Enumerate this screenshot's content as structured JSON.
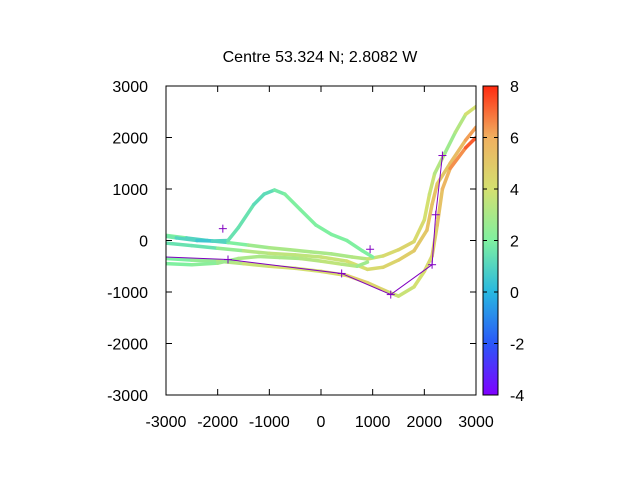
{
  "chart_data": {
    "type": "line",
    "title": "Centre 53.324 N; 2.8082  W",
    "xlabel": "",
    "ylabel": "",
    "xlim": [
      -3000,
      3000
    ],
    "ylim": [
      -3000,
      3000
    ],
    "xticks": [
      -3000,
      -2000,
      -1000,
      0,
      1000,
      2000,
      3000
    ],
    "yticks": [
      -3000,
      -2000,
      -1000,
      0,
      1000,
      2000,
      3000
    ],
    "xtick_labels": [
      "-3000",
      "-2000",
      "-1000",
      "0",
      "1000",
      "2000",
      "3000"
    ],
    "ytick_labels": [
      "-3000",
      "-2000",
      "-1000",
      "0",
      "1000",
      "2000",
      "3000"
    ],
    "colorbar": {
      "range": [
        -4,
        8
      ],
      "ticks": [
        8,
        6,
        4,
        2,
        0,
        -2,
        -4
      ],
      "tick_labels": [
        "8",
        "6",
        "4",
        "2",
        "0",
        "-2",
        "-4"
      ],
      "palette": [
        "#8000ff",
        "#2a57f8",
        "#28b8e0",
        "#7ff0a0",
        "#d4e070",
        "#f0b060",
        "#ff2a10"
      ]
    },
    "grid": false,
    "series": [
      {
        "kind": "colored-track",
        "points": [
          [
            -3000,
            100,
            2.5
          ],
          [
            -2600,
            50,
            1.5
          ],
          [
            -2200,
            0,
            0.5
          ],
          [
            -1800,
            -40,
            1.5
          ],
          [
            -1400,
            -90,
            2.5
          ],
          [
            -1000,
            -140,
            3
          ],
          [
            -600,
            -180,
            3
          ],
          [
            -200,
            -220,
            3
          ],
          [
            200,
            -260,
            3
          ],
          [
            600,
            -320,
            3
          ],
          [
            900,
            -360,
            3.5
          ],
          [
            1200,
            -300,
            4
          ],
          [
            1500,
            -180,
            4.5
          ],
          [
            1800,
            -20,
            4.5
          ],
          [
            2000,
            400,
            4
          ],
          [
            2100,
            900,
            4
          ],
          [
            2200,
            1300,
            3.5
          ],
          [
            2400,
            1700,
            3
          ],
          [
            2600,
            2100,
            2.5
          ],
          [
            2800,
            2450,
            4
          ],
          [
            3000,
            2600,
            4
          ]
        ]
      },
      {
        "kind": "colored-track",
        "points": [
          [
            -3000,
            -50,
            2
          ],
          [
            -2500,
            -100,
            1
          ],
          [
            -2000,
            -150,
            2
          ],
          [
            -1500,
            -200,
            3
          ],
          [
            -1000,
            -250,
            3.5
          ],
          [
            -500,
            -280,
            3.5
          ],
          [
            0,
            -320,
            3.5
          ],
          [
            500,
            -400,
            4
          ],
          [
            900,
            -560,
            4
          ],
          [
            1200,
            -520,
            4.5
          ],
          [
            1500,
            -380,
            4.5
          ],
          [
            1800,
            -200,
            5
          ],
          [
            2050,
            200,
            5
          ],
          [
            2150,
            700,
            5.5
          ],
          [
            2250,
            1100,
            5
          ],
          [
            2500,
            1500,
            5
          ],
          [
            2800,
            1950,
            6
          ],
          [
            3000,
            2200,
            6.5
          ]
        ]
      },
      {
        "kind": "colored-track",
        "points": [
          [
            -3000,
            -350,
            2
          ],
          [
            -2500,
            -380,
            2
          ],
          [
            -2000,
            -400,
            3
          ],
          [
            -1500,
            -450,
            3.5
          ],
          [
            -1000,
            -500,
            4
          ],
          [
            -500,
            -540,
            4
          ],
          [
            0,
            -600,
            4
          ],
          [
            500,
            -680,
            4.5
          ],
          [
            900,
            -820,
            5
          ],
          [
            1300,
            -1000,
            4
          ],
          [
            1500,
            -1080,
            3.5
          ],
          [
            1800,
            -900,
            4
          ],
          [
            2000,
            -600,
            4
          ],
          [
            2150,
            -300,
            4.5
          ],
          [
            2250,
            300,
            5
          ],
          [
            2350,
            1000,
            5.5
          ],
          [
            2500,
            1400,
            6
          ],
          [
            2800,
            1800,
            7
          ],
          [
            3000,
            2000,
            7.5
          ]
        ]
      },
      {
        "kind": "colored-track",
        "points": [
          [
            -3000,
            -450,
            2
          ],
          [
            -2500,
            -470,
            2
          ],
          [
            -2000,
            -440,
            2.5
          ],
          [
            -1600,
            -350,
            3
          ],
          [
            -1200,
            -310,
            3
          ],
          [
            -800,
            -330,
            3
          ],
          [
            -400,
            -350,
            3
          ],
          [
            0,
            -400,
            3.5
          ],
          [
            400,
            -460,
            3.5
          ],
          [
            700,
            -500,
            3
          ],
          [
            900,
            -420,
            2.5
          ]
        ]
      },
      {
        "kind": "colored-track",
        "points": [
          [
            -3000,
            80,
            2
          ],
          [
            -2800,
            50,
            1.5
          ],
          [
            -2400,
            0,
            0.5
          ],
          [
            -2100,
            -10,
            0.5
          ],
          [
            -1800,
            0,
            1.5
          ],
          [
            -1600,
            250,
            1.5
          ],
          [
            -1300,
            700,
            1.5
          ],
          [
            -1100,
            900,
            1
          ],
          [
            -900,
            980,
            1.5
          ],
          [
            -700,
            900,
            2
          ],
          [
            -400,
            600,
            2
          ],
          [
            -100,
            300,
            2
          ],
          [
            200,
            120,
            2
          ],
          [
            500,
            0,
            2
          ],
          [
            800,
            -200,
            2
          ],
          [
            1000,
            -320,
            2
          ]
        ]
      }
    ],
    "reference_path": {
      "color": "#8000c0",
      "points": [
        [
          -3000,
          -320
        ],
        [
          -1800,
          -370
        ],
        [
          400,
          -640
        ],
        [
          1350,
          -1050
        ],
        [
          2150,
          -470
        ],
        [
          2220,
          500
        ],
        [
          2350,
          1650
        ]
      ]
    },
    "markers": {
      "color": "#8000c0",
      "symbol": "+",
      "points": [
        [
          -1900,
          230
        ],
        [
          -1800,
          -370
        ],
        [
          400,
          -640
        ],
        [
          1350,
          -1050
        ],
        [
          2150,
          -470
        ],
        [
          2220,
          500
        ],
        [
          2350,
          1650
        ],
        [
          950,
          -170
        ]
      ]
    }
  }
}
